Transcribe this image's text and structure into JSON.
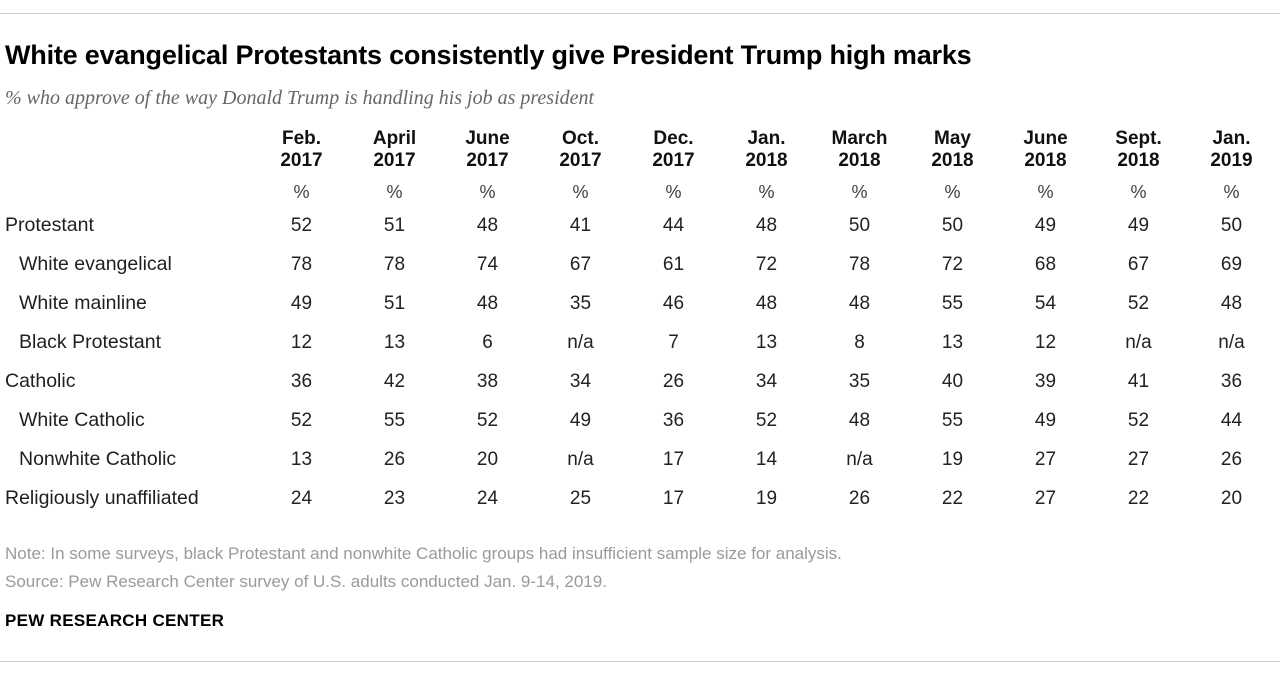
{
  "header": {
    "title": "White evangelical Protestants consistently give President Trump high marks",
    "subtitle": "% who approve of the way Donald Trump is handling his job as president"
  },
  "chart_data": {
    "type": "table",
    "title": "White evangelical Protestants consistently give President Trump high marks",
    "subtitle": "% who approve of the way Donald Trump is handling his job as president",
    "categories": [
      "Feb. 2017",
      "April 2017",
      "June 2017",
      "Oct. 2017",
      "Dec. 2017",
      "Jan. 2018",
      "March 2018",
      "May 2018",
      "June 2018",
      "Sept. 2018",
      "Jan. 2019"
    ],
    "unit_row": [
      "%",
      "%",
      "%",
      "%",
      "%",
      "%",
      "%",
      "%",
      "%",
      "%",
      "%"
    ],
    "series": [
      {
        "name": "Protestant",
        "indent": 0,
        "values": [
          52,
          51,
          48,
          41,
          44,
          48,
          50,
          50,
          49,
          49,
          50
        ]
      },
      {
        "name": "White evangelical",
        "indent": 1,
        "values": [
          78,
          78,
          74,
          67,
          61,
          72,
          78,
          72,
          68,
          67,
          69
        ]
      },
      {
        "name": "White mainline",
        "indent": 1,
        "values": [
          49,
          51,
          48,
          35,
          46,
          48,
          48,
          55,
          54,
          52,
          48
        ]
      },
      {
        "name": "Black Protestant",
        "indent": 1,
        "values": [
          12,
          13,
          6,
          "n/a",
          7,
          13,
          8,
          13,
          12,
          "n/a",
          "n/a"
        ]
      },
      {
        "name": "Catholic",
        "indent": 0,
        "values": [
          36,
          42,
          38,
          34,
          26,
          34,
          35,
          40,
          39,
          41,
          36
        ]
      },
      {
        "name": "White Catholic",
        "indent": 1,
        "values": [
          52,
          55,
          52,
          49,
          36,
          52,
          48,
          55,
          49,
          52,
          44
        ]
      },
      {
        "name": "Nonwhite Catholic",
        "indent": 1,
        "values": [
          13,
          26,
          20,
          "n/a",
          17,
          14,
          "n/a",
          19,
          27,
          27,
          26
        ]
      },
      {
        "name": "Religiously unaffiliated",
        "indent": 0,
        "values": [
          24,
          23,
          24,
          25,
          17,
          19,
          26,
          22,
          27,
          22,
          20
        ]
      }
    ]
  },
  "footer": {
    "note": "Note: In some surveys, black Protestant and nonwhite Catholic groups had insufficient sample size for analysis.",
    "source": "Source: Pew Research Center survey of U.S. adults conducted Jan. 9-14, 2019.",
    "brand": "PEW RESEARCH CENTER"
  },
  "colors": {
    "title_text": "#000000",
    "body_text": "#222222",
    "subtitle_text": "#666666",
    "note_text": "#9a9a9a",
    "rule": "#cbcbcb",
    "background": "#ffffff"
  }
}
